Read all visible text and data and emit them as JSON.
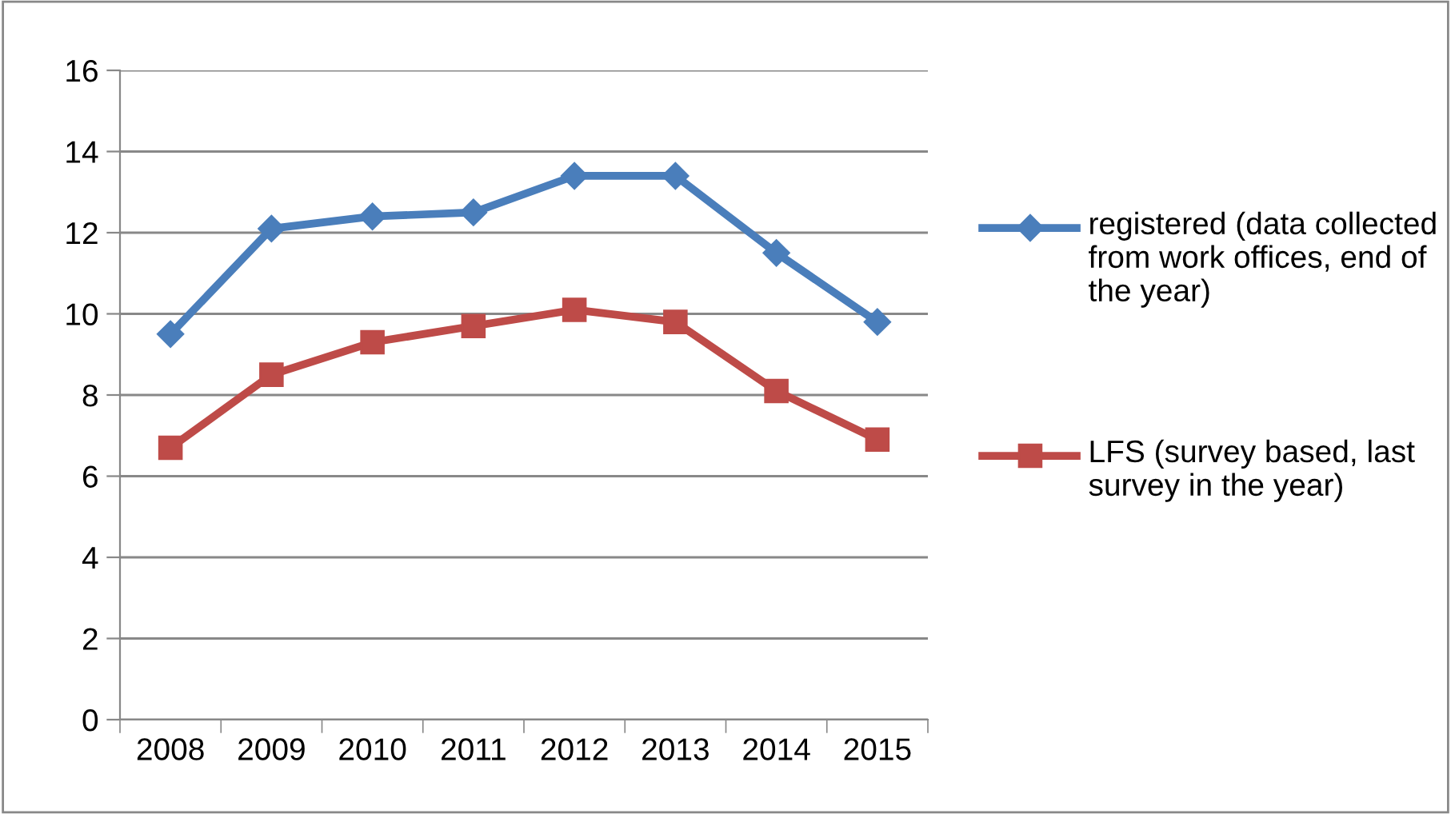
{
  "chart_data": {
    "type": "line",
    "categories": [
      "2008",
      "2009",
      "2010",
      "2011",
      "2012",
      "2013",
      "2014",
      "2015"
    ],
    "series": [
      {
        "name": "registered (data collected from work offices, end of the year)",
        "color": "#4a7ebb",
        "marker": "diamond",
        "values": [
          9.5,
          12.1,
          12.4,
          12.5,
          13.4,
          13.4,
          11.5,
          9.8
        ]
      },
      {
        "name": "LFS (survey based, last survey in the year)",
        "color": "#be4b48",
        "marker": "square",
        "values": [
          6.7,
          8.5,
          9.3,
          9.7,
          10.1,
          9.8,
          8.1,
          6.9
        ]
      }
    ],
    "ylim": [
      0,
      16
    ],
    "yticks": [
      0,
      2,
      4,
      6,
      8,
      10,
      12,
      14,
      16
    ],
    "grid": "y",
    "legend": "right",
    "line_style": "solid"
  }
}
